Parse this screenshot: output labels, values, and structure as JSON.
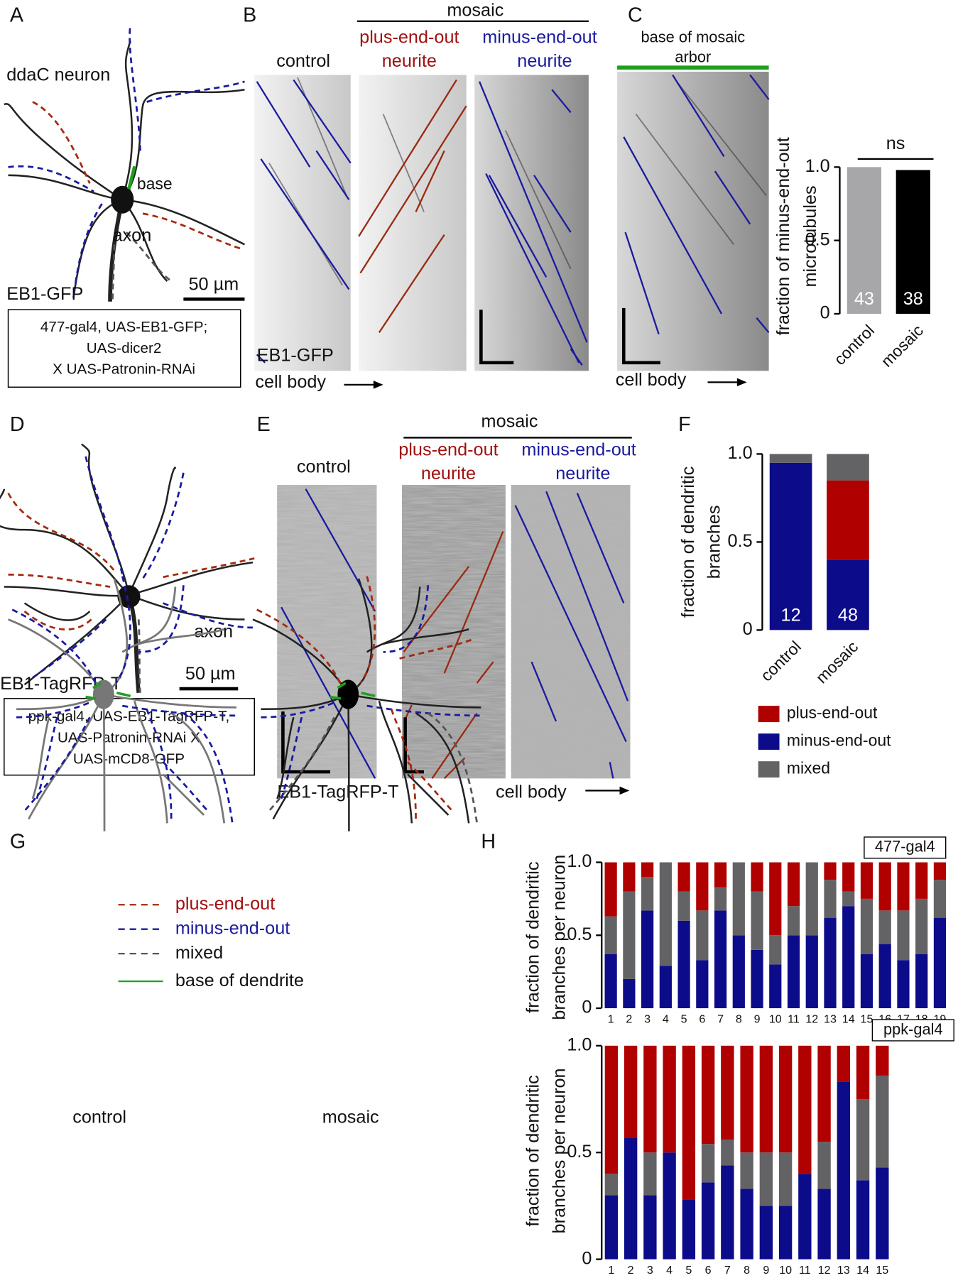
{
  "panels": {
    "A": {
      "label": "A",
      "title": "ddaC neuron",
      "base": "base",
      "axon": "axon",
      "scale": "50 µm",
      "marker": "EB1-GFP",
      "genotype": [
        "477-gal4, UAS-EB1-GFP;",
        "UAS-dicer2",
        "X UAS-Patronin-RNAi"
      ]
    },
    "B": {
      "label": "B",
      "group": "mosaic",
      "control": "control",
      "plus": [
        "plus-end-out",
        "neurite"
      ],
      "minus": [
        "minus-end-out",
        "neurite"
      ],
      "marker": "EB1-GFP",
      "axis": "cell body"
    },
    "C": {
      "label": "C",
      "region": [
        "base of mosaic",
        "arbor"
      ],
      "axis": "cell body"
    },
    "D": {
      "label": "D",
      "axon": "axon",
      "scale": "50 µm",
      "marker": "EB1-TagRFP-T",
      "genotype": [
        "ppk-gal4, UAS-EB1-TagRFP-T,",
        "UAS-Patronin-RNAi X",
        "UAS-mCD8-GFP"
      ]
    },
    "E": {
      "label": "E",
      "group": "mosaic",
      "control": "control",
      "plus": [
        "plus-end-out",
        "neurite"
      ],
      "minus": [
        "minus-end-out",
        "neurite"
      ],
      "marker": "EB1-TagRFP-T",
      "axis": "cell body"
    },
    "F": {
      "label": "F"
    },
    "G": {
      "label": "G",
      "control": "control",
      "mosaic": "mosaic",
      "legend": [
        "plus-end-out",
        "minus-end-out",
        "mixed",
        "base of dendrite"
      ]
    },
    "H": {
      "label": "H"
    }
  },
  "chart_data": [
    {
      "type": "bar",
      "ylabel": [
        "fraction of minus-end-out",
        "microtubules"
      ],
      "categories": [
        "control",
        "mosaic"
      ],
      "values": [
        1.0,
        0.98
      ],
      "colors": [
        "#a7a7a9",
        "#000000"
      ],
      "sample_sizes": [
        43,
        38
      ],
      "annotation": "ns",
      "ylim": [
        0,
        1
      ],
      "yticks": [
        0,
        0.5,
        {
          "value": 1,
          "label": "1.0"
        }
      ]
    },
    {
      "type": "stacked_bar",
      "ylabel": [
        "fraction of dendritic",
        "branches"
      ],
      "categories": [
        "control",
        "mosaic"
      ],
      "series": [
        {
          "name": "minus-end-out",
          "color": "#0c0c8a",
          "values": [
            0.95,
            0.4
          ]
        },
        {
          "name": "plus-end-out",
          "color": "#b00000",
          "values": [
            0,
            0.45
          ]
        },
        {
          "name": "mixed",
          "color": "#636365",
          "values": [
            0.05,
            0.15
          ]
        }
      ],
      "sample_sizes": [
        12,
        48
      ],
      "legend": "below",
      "ylim": [
        0,
        1
      ],
      "yticks": [
        0,
        0.5,
        {
          "value": 1,
          "label": "1.0"
        }
      ]
    },
    {
      "type": "stacked_bar",
      "ylabel": [
        "fraction of dendritic",
        "branches per neuron"
      ],
      "label": "477-gal4",
      "categories": [
        "1",
        "2",
        "3",
        "4",
        "5",
        "6",
        "7",
        "8",
        "9",
        "10",
        "11",
        "12",
        "13",
        "14",
        "15",
        "16",
        "17",
        "18",
        "19"
      ],
      "series": [
        {
          "name": "minus-end-out",
          "color": "#0c0c8a",
          "values": [
            0.37,
            0.2,
            0.67,
            0.29,
            0.6,
            0.33,
            0.67,
            0.5,
            0.4,
            0.3,
            0.5,
            0.5,
            0.62,
            0.7,
            0.37,
            0.44,
            0.33,
            0.37,
            0.62
          ]
        },
        {
          "name": "mixed",
          "color": "#636365",
          "values": [
            0.26,
            0.6,
            0.23,
            0.71,
            0.2,
            0.34,
            0.16,
            0.5,
            0.4,
            0.2,
            0.2,
            0.5,
            0.26,
            0.1,
            0.38,
            0.23,
            0.34,
            0.38,
            0.26
          ]
        },
        {
          "name": "plus-end-out",
          "color": "#b00000",
          "values": [
            0.37,
            0.2,
            0.1,
            0,
            0.2,
            0.33,
            0.17,
            0,
            0.2,
            0.5,
            0.3,
            0,
            0.12,
            0.2,
            0.25,
            0.33,
            0.33,
            0.25,
            0.12
          ]
        }
      ],
      "ylim": [
        0,
        1
      ],
      "yticks": [
        0,
        0.5,
        {
          "value": 1,
          "label": "1.0"
        }
      ]
    },
    {
      "type": "stacked_bar",
      "ylabel": [
        "fraction of dendritic",
        "branches per neuron"
      ],
      "label": "ppk-gal4",
      "categories": [
        "1",
        "2",
        "3",
        "4",
        "5",
        "6",
        "7",
        "8",
        "9",
        "10",
        "11",
        "12",
        "13",
        "14",
        "15"
      ],
      "series": [
        {
          "name": "minus-end-out",
          "color": "#0c0c8a",
          "values": [
            0.3,
            0.57,
            0.3,
            0.5,
            0.28,
            0.36,
            0.44,
            0.33,
            0.25,
            0.25,
            0.4,
            0.33,
            0.83,
            0.37,
            0.43
          ]
        },
        {
          "name": "mixed",
          "color": "#636365",
          "values": [
            0.1,
            0,
            0.2,
            0,
            0,
            0.18,
            0.12,
            0.17,
            0.25,
            0.25,
            0,
            0.22,
            0,
            0.38,
            0.43
          ]
        },
        {
          "name": "plus-end-out",
          "color": "#b00000",
          "values": [
            0.6,
            0.43,
            0.5,
            0.5,
            0.72,
            0.46,
            0.44,
            0.5,
            0.5,
            0.5,
            0.6,
            0.45,
            0.17,
            0.25,
            0.14
          ]
        }
      ],
      "ylim": [
        0,
        1
      ],
      "yticks": [
        0,
        0.5,
        {
          "value": 1,
          "label": "1.0"
        }
      ]
    }
  ]
}
